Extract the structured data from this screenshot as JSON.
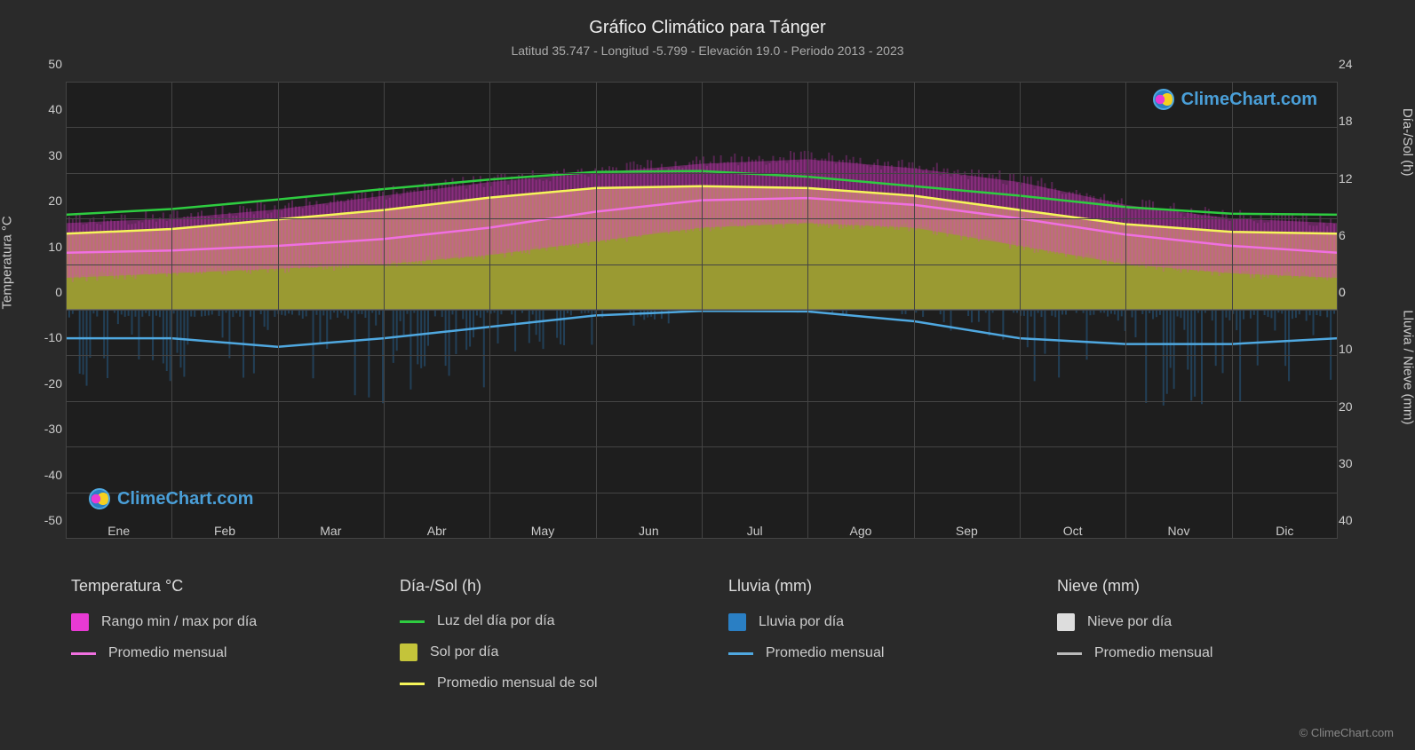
{
  "title": "Gráfico Climático para Tánger",
  "subtitle": "Latitud 35.747 - Longitud -5.799 - Elevación 19.0 - Periodo 2013 - 2023",
  "watermark_text": "ClimeChart.com",
  "copyright": "© ClimeChart.com",
  "colors": {
    "background": "#2a2a2a",
    "plot_bg": "#1e1e1e",
    "grid": "#444444",
    "text": "#cccccc",
    "temp_range": "#e83ad4",
    "temp_avg": "#f070e0",
    "daylight": "#2ecc40",
    "sun_fill": "#c4c43a",
    "sun_avg": "#f5f55a",
    "rain_fill": "#2a7fc4",
    "rain_avg": "#4fa8e0",
    "snow_fill": "#dddddd",
    "snow_avg": "#bbbbbb",
    "watermark": "#4a9fd8"
  },
  "axes": {
    "left_label": "Temperatura °C",
    "right_top_label": "Día-/Sol (h)",
    "right_bottom_label": "Lluvia / Nieve (mm)",
    "left_ticks": [
      50,
      40,
      30,
      20,
      10,
      0,
      -10,
      -20,
      -30,
      -40,
      -50
    ],
    "right_top_ticks": [
      24,
      18,
      12,
      6,
      0
    ],
    "right_bottom_ticks": [
      0,
      10,
      20,
      30,
      40
    ],
    "left_range": [
      -50,
      50
    ],
    "right_top_range": [
      0,
      24
    ],
    "right_bottom_range": [
      0,
      40
    ],
    "months": [
      "Ene",
      "Feb",
      "Mar",
      "Abr",
      "May",
      "Jun",
      "Jul",
      "Ago",
      "Sep",
      "Oct",
      "Nov",
      "Dic"
    ]
  },
  "legend": {
    "columns": [
      {
        "header": "Temperatura °C",
        "items": [
          {
            "type": "swatch",
            "color": "#e83ad4",
            "label": "Rango min / max por día"
          },
          {
            "type": "line",
            "color": "#f070e0",
            "label": "Promedio mensual"
          }
        ]
      },
      {
        "header": "Día-/Sol (h)",
        "items": [
          {
            "type": "line",
            "color": "#2ecc40",
            "label": "Luz del día por día"
          },
          {
            "type": "swatch",
            "color": "#c4c43a",
            "label": "Sol por día"
          },
          {
            "type": "line",
            "color": "#f5f55a",
            "label": "Promedio mensual de sol"
          }
        ]
      },
      {
        "header": "Lluvia (mm)",
        "items": [
          {
            "type": "swatch",
            "color": "#2a7fc4",
            "label": "Lluvia por día"
          },
          {
            "type": "line",
            "color": "#4fa8e0",
            "label": "Promedio mensual"
          }
        ]
      },
      {
        "header": "Nieve (mm)",
        "items": [
          {
            "type": "swatch",
            "color": "#dddddd",
            "label": "Nieve por día"
          },
          {
            "type": "line",
            "color": "#bbbbbb",
            "label": "Promedio mensual"
          }
        ]
      }
    ]
  },
  "series": {
    "daylight_h": [
      10.0,
      10.6,
      11.6,
      12.7,
      13.7,
      14.5,
      14.6,
      14.0,
      13.0,
      12.0,
      10.8,
      10.1,
      10.0
    ],
    "sun_avg_h": [
      8.0,
      8.5,
      9.5,
      10.5,
      11.8,
      12.8,
      13.0,
      12.8,
      12.0,
      10.5,
      9.0,
      8.2,
      8.0
    ],
    "temp_avg_c": [
      12.5,
      13.0,
      14.0,
      15.5,
      18.0,
      21.5,
      24.0,
      24.5,
      23.0,
      20.0,
      16.5,
      14.0,
      12.5
    ],
    "temp_max_envelope_c": [
      19,
      20,
      22,
      25,
      28,
      30,
      32,
      33,
      31,
      28,
      23,
      20,
      19
    ],
    "temp_min_envelope_c": [
      7,
      8,
      9,
      10,
      12,
      15,
      18,
      19,
      18,
      14,
      10,
      8,
      7
    ],
    "rain_avg_mm": [
      5.0,
      5.0,
      6.5,
      5.0,
      3.0,
      1.0,
      0.2,
      0.3,
      2.0,
      5.0,
      6.0,
      6.0,
      5.0
    ]
  }
}
